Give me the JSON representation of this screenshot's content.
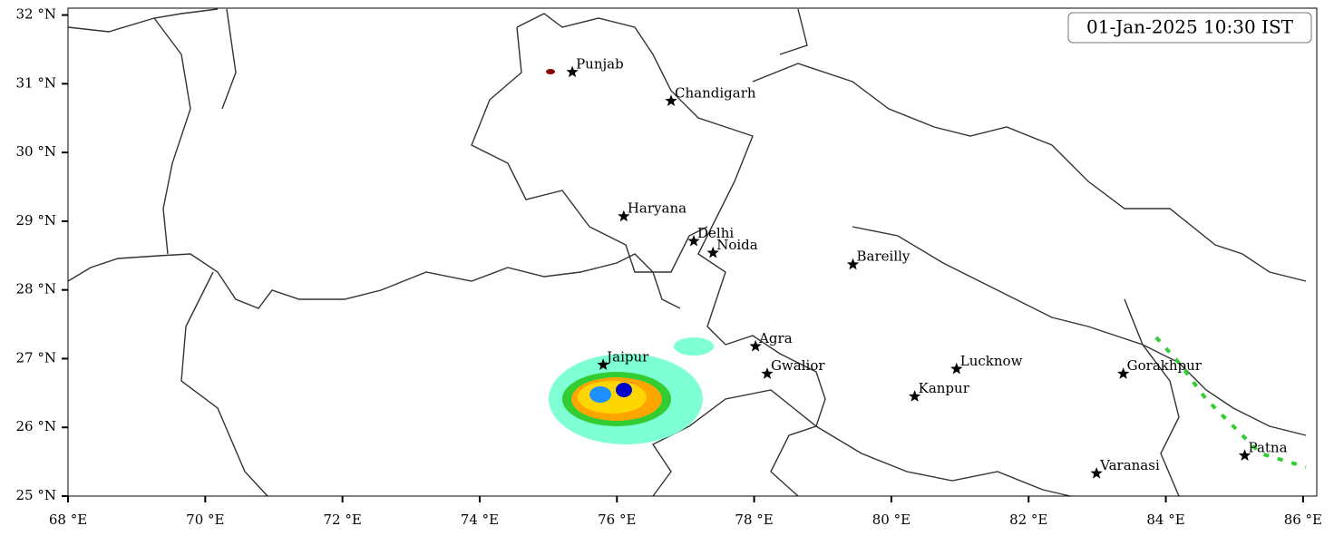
{
  "chart_data": {
    "type": "map",
    "timestamp": "01-Jan-2025 10:30 IST",
    "xlim": [
      68,
      86.2
    ],
    "ylim": [
      25,
      32.1
    ],
    "xticks": [
      {
        "value": 68,
        "label": "68 °E"
      },
      {
        "value": 70,
        "label": "70 °E"
      },
      {
        "value": 72,
        "label": "72 °E"
      },
      {
        "value": 74,
        "label": "74 °E"
      },
      {
        "value": 76,
        "label": "76 °E"
      },
      {
        "value": 78,
        "label": "78 °E"
      },
      {
        "value": 80,
        "label": "80 °E"
      },
      {
        "value": 82,
        "label": "82 °E"
      },
      {
        "value": 84,
        "label": "84 °E"
      },
      {
        "value": 86,
        "label": "86 °E"
      }
    ],
    "yticks": [
      {
        "value": 25,
        "label": "25 °N"
      },
      {
        "value": 26,
        "label": "26 °N"
      },
      {
        "value": 27,
        "label": "27 °N"
      },
      {
        "value": 28,
        "label": "28 °N"
      },
      {
        "value": 29,
        "label": "29 °N"
      },
      {
        "value": 30,
        "label": "30 °N"
      },
      {
        "value": 31,
        "label": "31 °N"
      },
      {
        "value": 32,
        "label": "32 °N"
      }
    ],
    "points": [
      {
        "name": "Punjab",
        "lon": 75.35,
        "lat": 31.17
      },
      {
        "name": "Chandigarh",
        "lon": 76.79,
        "lat": 30.75
      },
      {
        "name": "Haryana",
        "lon": 76.1,
        "lat": 29.07
      },
      {
        "name": "Delhi",
        "lon": 77.12,
        "lat": 28.71
      },
      {
        "name": "Noida",
        "lon": 77.4,
        "lat": 28.54
      },
      {
        "name": "Bareilly",
        "lon": 79.44,
        "lat": 28.37
      },
      {
        "name": "Agra",
        "lon": 78.02,
        "lat": 27.18
      },
      {
        "name": "Jaipur",
        "lon": 75.8,
        "lat": 26.91
      },
      {
        "name": "Gwalior",
        "lon": 78.19,
        "lat": 26.78
      },
      {
        "name": "Lucknow",
        "lon": 80.95,
        "lat": 26.85
      },
      {
        "name": "Kanpur",
        "lon": 80.34,
        "lat": 26.45
      },
      {
        "name": "Gorakhpur",
        "lon": 83.38,
        "lat": 26.78
      },
      {
        "name": "Varanasi",
        "lon": 82.99,
        "lat": 25.33
      },
      {
        "name": "Patna",
        "lon": 85.15,
        "lat": 25.59
      }
    ]
  }
}
